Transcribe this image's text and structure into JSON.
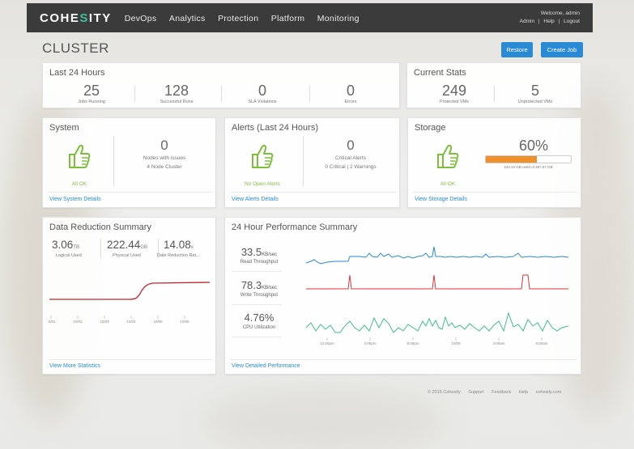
{
  "header": {
    "logo_prefix": "COHE",
    "logo_mark": "S",
    "logo_suffix": "ITY",
    "nav": [
      "DevOps",
      "Analytics",
      "Protection",
      "Platform",
      "Monitoring"
    ],
    "welcome": "Welcome, admin",
    "links": [
      "Admin",
      "|",
      "Help",
      "|",
      "Logout"
    ]
  },
  "page": {
    "title": "CLUSTER",
    "restore_label": "Restore",
    "create_job_label": "Create Job"
  },
  "last24": {
    "title": "Last 24 Hours",
    "stats": [
      {
        "value": "25",
        "label": "Jobs Running"
      },
      {
        "value": "128",
        "label": "Successful Runs"
      },
      {
        "value": "0",
        "label": "SLA Violations"
      },
      {
        "value": "0",
        "label": "Errors"
      }
    ]
  },
  "current_stats": {
    "title": "Current Stats",
    "stats": [
      {
        "value": "249",
        "label": "Protected VMs"
      },
      {
        "value": "5",
        "label": "Unprotected VMs"
      }
    ]
  },
  "system": {
    "title": "System",
    "status": "All OK",
    "nodes_issues": "0",
    "nodes_issues_label": "Nodes with issues",
    "cluster_label": "4 Node Cluster",
    "link": "View System Details"
  },
  "alerts": {
    "title": "Alerts (Last 24 Hours)",
    "status": "No Open Alerts",
    "critical": "0",
    "critical_label": "Critical Alerts",
    "breakdown": "0 Critical | 2 Warnings",
    "link": "View Alerts Details"
  },
  "storage": {
    "title": "Storage",
    "status": "All OK",
    "percent": "60%",
    "used_fraction": 0.6,
    "usage_text": "222.44 GB used of 367.67 GB",
    "link": "View Storage Details"
  },
  "data_reduction": {
    "title": "Data Reduction Summary",
    "items": [
      {
        "value": "3.06",
        "unit": "TB",
        "label": "Logical Used"
      },
      {
        "value": "222.44",
        "unit": "GB",
        "label": "Physical Used"
      },
      {
        "value": "14.08",
        "unit": "x",
        "label": "Date Reduction Rat..."
      }
    ],
    "ticks": [
      "10/01",
      "10/02",
      "10/03",
      "10/04",
      "10/05",
      "10/06"
    ],
    "link": "View More Statistics"
  },
  "performance": {
    "title": "24 Hour Performance Summary",
    "metrics": [
      {
        "value": "33.5",
        "unit": "KB/sec",
        "label": "Read Throughput"
      },
      {
        "value": "78.3",
        "unit": "KB/sec",
        "label": "Write Throughput"
      },
      {
        "value": "4.76%",
        "unit": "",
        "label": "CPU Utilization"
      }
    ],
    "ticks": [
      "12:00pm",
      "4:00pm",
      "8:00pm",
      "10/06",
      "4:00am",
      "8:00am"
    ],
    "link": "View Detailed Performance"
  },
  "colors": {
    "accent": "#2a8bd4",
    "ok_green": "#7dbf3b",
    "storage_orange": "#f0902a",
    "read_line": "#2a8bd4",
    "write_line": "#d9343a",
    "cpu_line": "#3fbf8b",
    "reduction_line": "#c0262d"
  },
  "footer": [
    "© 2015 Cohesity",
    "Support",
    "Feedback",
    "Help",
    "cohesity.com"
  ]
}
